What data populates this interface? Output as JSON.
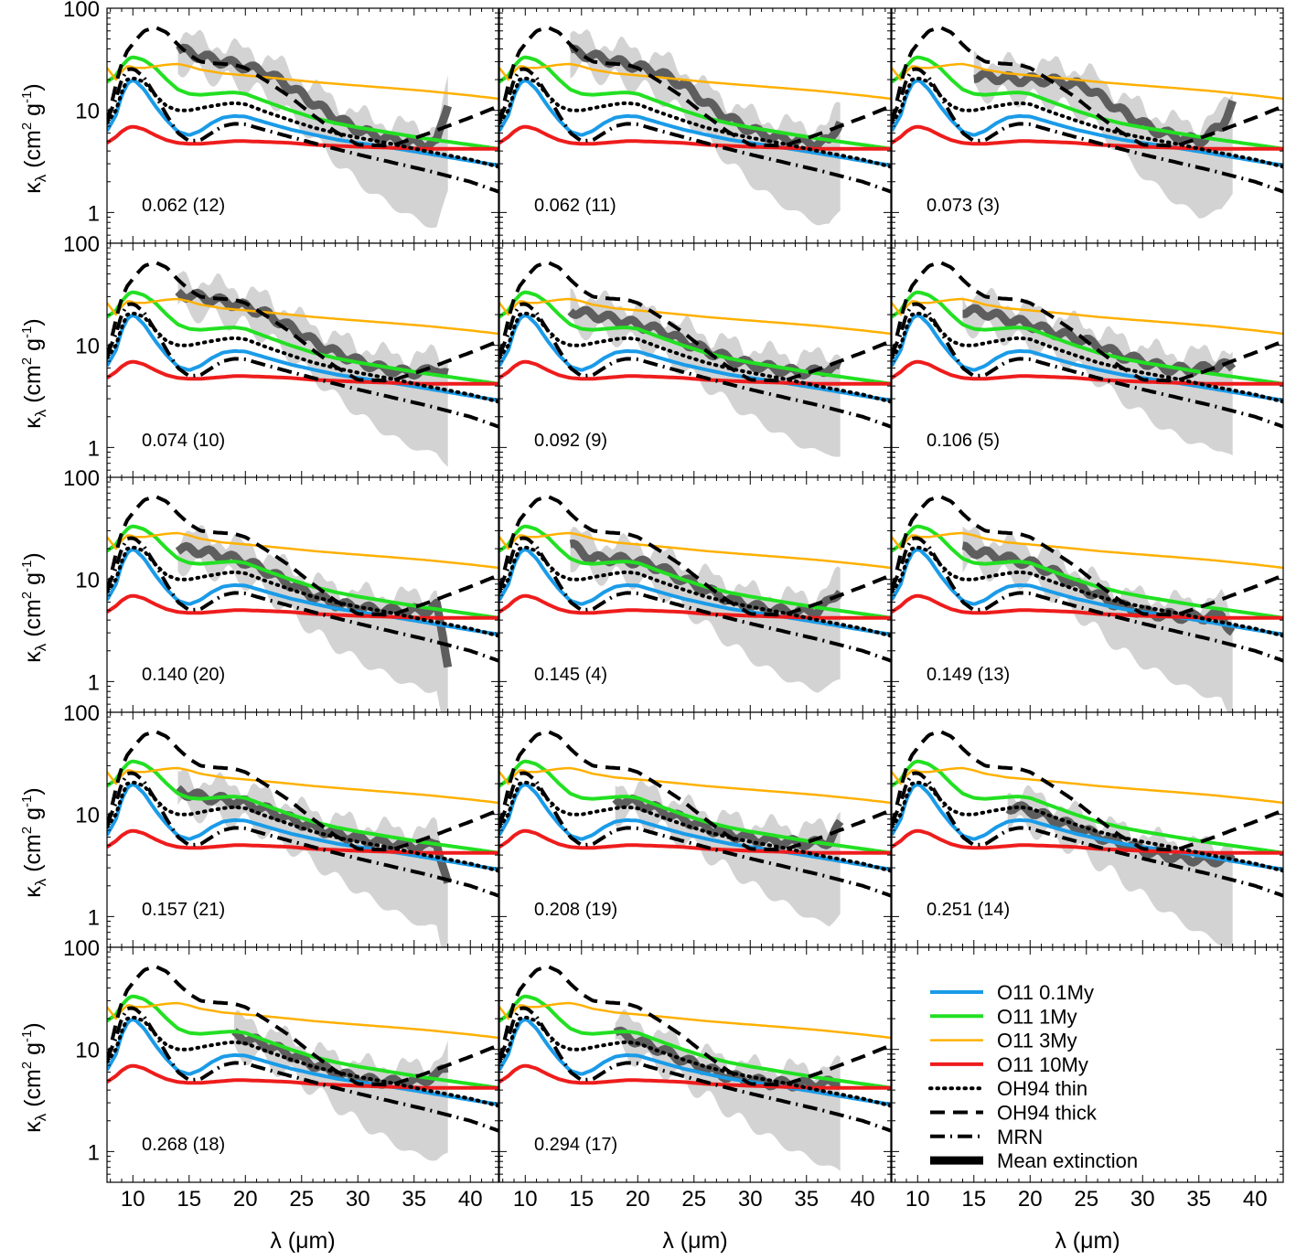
{
  "figure": {
    "ylabel": "κλ (cm² g⁻¹)",
    "ylabel_main": "κ",
    "ylabel_sub": "λ",
    "ylabel_unit_open": " (cm",
    "ylabel_sup2": "2",
    "ylabel_unit_g": " g",
    "ylabel_supm1": "-1",
    "ylabel_close": ")",
    "xlabel": "λ (μm)",
    "x_tick_labels": [
      "10",
      "15",
      "20",
      "25",
      "30",
      "35",
      "40"
    ],
    "y_tick_labels": [
      "1",
      "10",
      "100"
    ]
  },
  "legend": {
    "position": "bottom-right panel",
    "entries": [
      {
        "label": "O11 0.1My",
        "color": "#1a9be8",
        "style": "solid",
        "width": 4
      },
      {
        "label": "O11 1My",
        "color": "#22e022",
        "style": "solid",
        "width": 4
      },
      {
        "label": "O11 3My",
        "color": "#ffb000",
        "style": "solid",
        "width": 2.5
      },
      {
        "label": "O11 10My",
        "color": "#ee1c1c",
        "style": "solid",
        "width": 4
      },
      {
        "label": "OH94 thin",
        "color": "#000000",
        "style": "dotted",
        "width": 4
      },
      {
        "label": "OH94 thick",
        "color": "#000000",
        "style": "dashed",
        "width": 4
      },
      {
        "label": "MRN",
        "color": "#000000",
        "style": "dashdot",
        "width": 4
      },
      {
        "label": "Mean extinction",
        "color": "#000000",
        "style": "solid",
        "width": 9
      }
    ]
  },
  "chart_data": {
    "type": "line",
    "layout": "5x3 grid, 14 panels plus legend",
    "xlabel": "λ (μm)",
    "ylabel": "κλ (cm² g⁻¹)",
    "xlim": [
      7.7,
      42.5
    ],
    "ylim": [
      0.5,
      100
    ],
    "y_scale": "log",
    "grid": false,
    "models": {
      "x": [
        7.7,
        8.5,
        9,
        9.5,
        9.8,
        10.2,
        11,
        12,
        13,
        14,
        15,
        16,
        17,
        18,
        19,
        20,
        22,
        24,
        26,
        28,
        30,
        33,
        36,
        40,
        42.5
      ],
      "series": [
        {
          "name": "O11 0.1My",
          "values": [
            6.3,
            9,
            14,
            18,
            19.5,
            19.5,
            16,
            11,
            8,
            6.2,
            5.7,
            6.3,
            7.5,
            8.5,
            8.8,
            8.7,
            7.5,
            6.5,
            5.8,
            5.2,
            4.8,
            4.3,
            3.8,
            3.2,
            2.9
          ]
        },
        {
          "name": "O11 1My",
          "values": [
            19,
            22,
            27,
            31,
            33,
            33,
            31,
            26,
            20,
            16,
            14.5,
            14.2,
            14.5,
            14.8,
            15,
            14.5,
            12,
            10,
            8.5,
            7.5,
            6.8,
            6,
            5.3,
            4.6,
            4.2
          ]
        },
        {
          "name": "O11 3My",
          "values": [
            26,
            20,
            24,
            27,
            27,
            26,
            26,
            27,
            28,
            28.5,
            27,
            25,
            24,
            23,
            22.5,
            22,
            21,
            20,
            19,
            18.2,
            17.5,
            16.5,
            15.5,
            14,
            13
          ]
        },
        {
          "name": "O11 10My",
          "values": [
            4.8,
            5.5,
            6.2,
            6.7,
            6.9,
            6.9,
            6.5,
            5.7,
            5.1,
            4.8,
            4.7,
            4.7,
            4.8,
            4.9,
            5,
            5,
            4.9,
            4.8,
            4.6,
            4.5,
            4.4,
            4.3,
            4.2,
            4.2,
            4.2
          ]
        },
        {
          "name": "OH94 thin",
          "values": [
            7.5,
            10,
            15,
            20,
            20.5,
            20.5,
            19,
            14,
            11,
            10,
            10,
            10.5,
            11,
            11.5,
            11.8,
            11.5,
            9.5,
            8,
            6.8,
            6,
            5.4,
            4.7,
            4,
            3.3,
            2.8
          ]
        },
        {
          "name": "OH94 thick",
          "values": [
            7.5,
            18,
            29,
            38,
            42,
            48,
            60,
            65,
            58,
            44,
            35,
            30,
            29,
            28.5,
            28,
            26,
            19,
            13.5,
            9,
            6.2,
            4.6,
            4.5,
            5.8,
            8.5,
            11
          ]
        },
        {
          "name": "MRN",
          "values": [
            8,
            13,
            20,
            25,
            25.5,
            25,
            21,
            14,
            9,
            6,
            5,
            5.1,
            6,
            7,
            7.4,
            7.3,
            6.3,
            5.5,
            4.8,
            4.2,
            3.7,
            3.1,
            2.6,
            2,
            1.6
          ]
        }
      ]
    },
    "panels": [
      {
        "label": "0.062 (12)",
        "observed": {
          "x": [
            14,
            16,
            18,
            20,
            22,
            24,
            26,
            28,
            30,
            32,
            34,
            36,
            37,
            38
          ],
          "values": [
            40,
            34,
            30,
            27,
            23,
            17,
            12,
            8.5,
            6.5,
            5.5,
            5,
            4.7,
            4.8,
            12
          ]
        }
      },
      {
        "label": "0.062 (11)",
        "observed": {
          "x": [
            14,
            16,
            18,
            20,
            22,
            24,
            26,
            28,
            30,
            32,
            34,
            36,
            37,
            38
          ],
          "values": [
            38,
            34,
            30,
            27,
            23,
            18,
            12,
            8.5,
            6.5,
            5.5,
            5,
            4.8,
            5,
            8
          ]
        }
      },
      {
        "label": "0.073 (3)",
        "observed": {
          "x": [
            15,
            17,
            19,
            21,
            23,
            25,
            27,
            29,
            31,
            33,
            35,
            37,
            38
          ],
          "values": [
            22,
            21,
            20,
            20,
            19,
            17,
            12,
            8.5,
            6.5,
            5.5,
            5,
            7,
            12
          ]
        }
      },
      {
        "label": "0.074 (10)",
        "observed": {
          "x": [
            14,
            16,
            18,
            20,
            22,
            24,
            26,
            28,
            30,
            32,
            34,
            36,
            37,
            38
          ],
          "values": [
            32,
            30,
            27,
            24,
            20,
            15,
            11,
            8.5,
            7,
            6,
            5.5,
            5.5,
            6,
            5
          ]
        }
      },
      {
        "label": "0.092 (9)",
        "observed": {
          "x": [
            14,
            16,
            18,
            20,
            22,
            24,
            26,
            28,
            30,
            32,
            34,
            36,
            37,
            38
          ],
          "values": [
            22,
            20,
            18,
            16,
            14,
            11,
            9,
            7.5,
            6.5,
            6,
            5.5,
            5.5,
            6,
            6
          ]
        }
      },
      {
        "label": "0.106 (5)",
        "observed": {
          "x": [
            14,
            16,
            18,
            20,
            22,
            24,
            26,
            28,
            30,
            32,
            34,
            36,
            37,
            38
          ],
          "values": [
            22,
            21,
            18,
            16,
            13.5,
            12,
            10,
            8,
            7,
            6,
            5.8,
            6,
            6.5,
            6
          ]
        }
      },
      {
        "label": "0.140 (20)",
        "observed": {
          "x": [
            14,
            16,
            18,
            20,
            22,
            24,
            26,
            28,
            30,
            32,
            34,
            36,
            37,
            38
          ],
          "values": [
            20,
            19,
            17,
            15,
            12,
            9,
            7,
            5.8,
            5.3,
            5,
            4.9,
            5,
            5.5,
            1.5
          ]
        }
      },
      {
        "label": "0.145 (4)",
        "observed": {
          "x": [
            14,
            16,
            18,
            20,
            22,
            24,
            26,
            28,
            30,
            32,
            34,
            36,
            37,
            38
          ],
          "values": [
            22,
            16,
            16,
            15,
            13,
            10,
            8,
            6.5,
            5.5,
            5,
            4.8,
            5,
            6,
            8
          ]
        }
      },
      {
        "label": "0.149 (13)",
        "observed": {
          "x": [
            14,
            16,
            18,
            20,
            22,
            24,
            26,
            28,
            30,
            32,
            34,
            36,
            37,
            38
          ],
          "values": [
            20,
            18,
            16,
            14.5,
            12,
            9,
            7,
            5.5,
            4.8,
            4.5,
            4.3,
            4.3,
            4.5,
            3
          ]
        }
      },
      {
        "label": "0.157 (21)",
        "observed": {
          "x": [
            14,
            16,
            18,
            20,
            22,
            24,
            26,
            28,
            30,
            32,
            34,
            36,
            37,
            38
          ],
          "values": [
            17,
            15,
            14,
            13,
            11,
            9,
            7.5,
            6.5,
            5.8,
            5.3,
            5,
            4.8,
            5.5,
            2
          ]
        }
      },
      {
        "label": "0.208 (19)",
        "observed": {
          "x": [
            18,
            20,
            22,
            24,
            26,
            28,
            30,
            32,
            34,
            36,
            37,
            38
          ],
          "values": [
            14,
            13,
            11,
            9,
            7.5,
            6.5,
            5.8,
            5.5,
            5.3,
            5.2,
            5.5,
            8
          ]
        }
      },
      {
        "label": "0.251 (14)",
        "observed": {
          "x": [
            18,
            20,
            22,
            24,
            26,
            28,
            30,
            32,
            34,
            36,
            37,
            38
          ],
          "values": [
            12,
            11,
            9,
            7.5,
            6.2,
            5.2,
            4.5,
            4,
            3.7,
            3.6,
            3.6,
            3.6
          ]
        }
      },
      {
        "label": "0.268 (18)",
        "observed": {
          "x": [
            19,
            21,
            23,
            25,
            27,
            29,
            31,
            33,
            35,
            37,
            38
          ],
          "values": [
            14,
            12,
            10,
            8,
            6.5,
            5.5,
            5,
            4.8,
            4.8,
            5.5,
            7
          ]
        }
      },
      {
        "label": "0.294 (17)",
        "observed": {
          "x": [
            18,
            20,
            22,
            24,
            26,
            28,
            30,
            32,
            34,
            36,
            37,
            38
          ],
          "values": [
            15,
            12,
            10,
            8,
            6.5,
            5.5,
            5,
            4.7,
            4.6,
            4.6,
            4.7,
            4.8
          ]
        }
      }
    ]
  }
}
